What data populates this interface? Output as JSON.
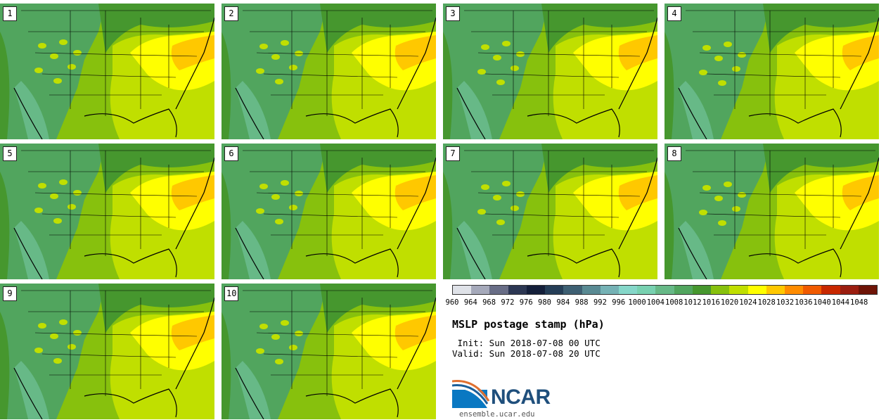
{
  "panels": [
    {
      "label": "1"
    },
    {
      "label": "2"
    },
    {
      "label": "3"
    },
    {
      "label": "4"
    },
    {
      "label": "5"
    },
    {
      "label": "6"
    },
    {
      "label": "7"
    },
    {
      "label": "8"
    },
    {
      "label": "9"
    },
    {
      "label": "10"
    }
  ],
  "colorbar": {
    "colors": [
      "#dfe2e8",
      "#a5a9ba",
      "#686d86",
      "#2c3753",
      "#141f3a",
      "#253e57",
      "#3e6073",
      "#598a93",
      "#75b2b5",
      "#85d7c9",
      "#78d1b0",
      "#67b987",
      "#51a55e",
      "#46972e",
      "#87c10d",
      "#c0df00",
      "#ffff00",
      "#ffc800",
      "#ff8c00",
      "#f05a00",
      "#c82800",
      "#9b1e10",
      "#6e1407"
    ],
    "ticks": [
      "960",
      "964",
      "968",
      "972",
      "976",
      "980",
      "984",
      "988",
      "992",
      "996",
      "1000",
      "1004",
      "1008",
      "1012",
      "1016",
      "1020",
      "1024",
      "1028",
      "1032",
      "1036",
      "1040",
      "1044",
      "1048"
    ]
  },
  "title": "MSLP postage stamp (hPa)",
  "init": " Init: Sun 2018-07-08 00 UTC",
  "valid": "Valid: Sun 2018-07-08 20 UTC",
  "logo": {
    "text": "NCAR",
    "site": "ensemble.ucar.edu"
  }
}
